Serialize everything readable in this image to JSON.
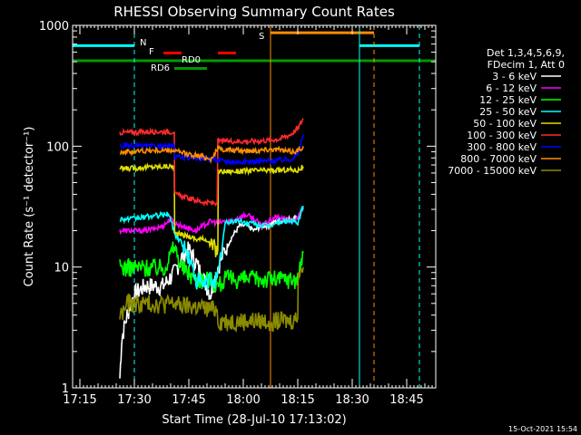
{
  "chart_data": {
    "type": "line",
    "title": "RHESSI Observing Summary Count Rates",
    "xlabel": "Start Time (28-Jul-10 17:13:02)",
    "ylabel": "Count Rate (s⁻¹ detector⁻¹)",
    "x_unit": "minutes after 17:13:02",
    "xlim": [
      0,
      100
    ],
    "ylim": [
      1,
      1000
    ],
    "yscale": "log",
    "x_ticks": [
      {
        "label": "17:15",
        "t": 2
      },
      {
        "label": "17:30",
        "t": 17
      },
      {
        "label": "17:45",
        "t": 32
      },
      {
        "label": "18:00",
        "t": 47
      },
      {
        "label": "18:15",
        "t": 62
      },
      {
        "label": "18:30",
        "t": 77
      },
      {
        "label": "18:45",
        "t": 92
      }
    ],
    "y_ticks": [
      {
        "label": "1",
        "v": 1
      },
      {
        "label": "10",
        "v": 10
      },
      {
        "label": "100",
        "v": 100
      },
      {
        "label": "1000",
        "v": 1000
      }
    ],
    "legend_position": "right",
    "legend_header": [
      "Det 1,3,4,5,6,9,",
      "FDecim 1, Att 0"
    ],
    "series": [
      {
        "name": "3 - 6 keV",
        "color": "#ffffff",
        "x": [
          13,
          13.5,
          14,
          15,
          16,
          17,
          20,
          25,
          28,
          30,
          32,
          34,
          36,
          38,
          40,
          42,
          44,
          46,
          48,
          50,
          52,
          54,
          56,
          58,
          60,
          62,
          63.5
        ],
        "y": [
          1.2,
          2.5,
          3,
          4,
          5,
          6,
          7,
          7,
          9,
          12,
          14,
          11,
          8,
          6,
          10,
          14,
          18,
          22,
          22,
          20,
          22,
          22,
          24,
          24,
          25,
          26,
          30
        ]
      },
      {
        "name": "6 - 12 keV",
        "color": "#ff00ff",
        "x": [
          13,
          14,
          17,
          20,
          23,
          25,
          27,
          28,
          30,
          32,
          34,
          36,
          38,
          40,
          42,
          44,
          46,
          48,
          50,
          52,
          54,
          56,
          58,
          60,
          62,
          63.5
        ],
        "y": [
          20,
          20,
          20,
          20,
          21,
          22,
          25,
          23,
          22,
          21,
          20,
          22,
          24,
          23,
          24,
          24,
          26,
          27,
          25,
          22,
          24,
          26,
          25,
          24,
          25,
          32
        ]
      },
      {
        "name": "12 - 25 keV",
        "color": "#00ff00",
        "x": [
          13,
          17,
          20,
          25,
          26,
          28,
          30,
          32,
          34,
          36,
          38,
          40,
          42,
          44,
          46,
          48,
          50,
          52,
          54,
          56,
          58,
          60,
          62,
          63.5
        ],
        "y": [
          10,
          10,
          10,
          10,
          11,
          15,
          10,
          9,
          8,
          8,
          8,
          7,
          8,
          8,
          8,
          8,
          8,
          8,
          8,
          8,
          8,
          8,
          8,
          13
        ]
      },
      {
        "name": "25 - 50 keV",
        "color": "#00ffff",
        "x": [
          13,
          17,
          20,
          25,
          26,
          27,
          28,
          30,
          32,
          34,
          36,
          38,
          40,
          42,
          44,
          46,
          48,
          50,
          52,
          54,
          56,
          58,
          60,
          62,
          63.5
        ],
        "y": [
          25,
          25,
          26,
          27,
          28,
          25,
          19,
          16,
          12,
          8,
          7,
          8,
          8,
          23,
          24,
          24,
          23,
          23,
          22,
          22,
          23,
          24,
          24,
          23,
          32
        ]
      },
      {
        "name": "50 - 100 keV",
        "color": "#dddd00",
        "x": [
          13,
          17,
          20,
          25,
          28,
          28.1,
          32,
          34,
          37,
          38,
          40,
          40.1,
          45,
          50,
          55,
          60,
          62,
          63.5
        ],
        "y": [
          65,
          66,
          67,
          68,
          68,
          19,
          18,
          17,
          17,
          15,
          14,
          62,
          62,
          63,
          63,
          64,
          63,
          68
        ]
      },
      {
        "name": "100 - 300 keV",
        "color": "#ff2a2a",
        "x": [
          13,
          17,
          20,
          25,
          28,
          28.1,
          32,
          35,
          37,
          39.8,
          40,
          45,
          50,
          54,
          57,
          60,
          62,
          63.5
        ],
        "y": [
          130,
          130,
          132,
          132,
          132,
          40,
          37,
          35,
          34,
          34,
          110,
          110,
          110,
          112,
          115,
          125,
          140,
          170
        ]
      },
      {
        "name": "300 - 800 keV",
        "color": "#0000ff",
        "x": [
          13,
          17,
          20,
          25,
          28,
          28.1,
          32,
          35,
          38,
          40,
          45,
          50,
          55,
          60,
          62,
          63.5
        ],
        "y": [
          100,
          100,
          100,
          100,
          100,
          82,
          80,
          80,
          79,
          76,
          74,
          75,
          76,
          78,
          85,
          125
        ]
      },
      {
        "name": "800 - 7000 keV",
        "color": "#ff8c00",
        "x": [
          13,
          17,
          20,
          25,
          28,
          30,
          33,
          36,
          38,
          40,
          45,
          50,
          55,
          60,
          62,
          63.5
        ],
        "y": [
          90,
          90,
          92,
          92,
          92,
          88,
          85,
          82,
          78,
          95,
          92,
          92,
          95,
          90,
          92,
          100
        ]
      },
      {
        "name": "7000 - 15000 keV",
        "color": "#8b8b00",
        "x": [
          13,
          14,
          15,
          17,
          20,
          25,
          28,
          30,
          34,
          38,
          39.8,
          40,
          45,
          50,
          55,
          60,
          62,
          62.1,
          63.5
        ],
        "y": [
          4,
          4.3,
          5,
          5,
          5,
          5,
          5,
          4.8,
          4.7,
          4.5,
          4.5,
          3.6,
          3.6,
          3.6,
          3.6,
          3.6,
          3.8,
          9,
          10
        ]
      }
    ],
    "annotations": [
      {
        "label": "N",
        "color": "#00ffff",
        "lines": [
          {
            "x": [
              0,
              17
            ],
            "y": 680
          },
          {
            "x": [
              79,
              95.5
            ],
            "y": 680
          }
        ]
      },
      {
        "label": "F",
        "color": "#ff0000",
        "lines": [
          {
            "x": [
              25,
              30
            ],
            "y": 590
          },
          {
            "x": [
              40,
              45
            ],
            "y": 590
          }
        ]
      },
      {
        "label": "RD0",
        "color": "#009900",
        "lines": [
          {
            "x": [
              0,
              100
            ],
            "y": 510
          }
        ]
      },
      {
        "label": "RD6",
        "color": "#009900",
        "lines": [
          {
            "x": [
              28,
              37
            ],
            "y": 440
          }
        ]
      },
      {
        "label": "S",
        "color": "#ff8c00",
        "lines": [
          {
            "x": [
              54.5,
              83
            ],
            "y": 870
          }
        ]
      }
    ],
    "vertical_markers": [
      {
        "t": 0,
        "color": "#00ffff",
        "style": "solid"
      },
      {
        "t": 17,
        "color": "#00ffff",
        "style": "dashed"
      },
      {
        "t": 54.5,
        "color": "#ff8c00",
        "style": "solid"
      },
      {
        "t": 79,
        "color": "#00ffff",
        "style": "solid"
      },
      {
        "t": 83,
        "color": "#ff8c00",
        "style": "dashed"
      },
      {
        "t": 95.5,
        "color": "#00ffff",
        "style": "dashed"
      }
    ]
  },
  "footer_timestamp": "15-Oct-2021 15:54"
}
